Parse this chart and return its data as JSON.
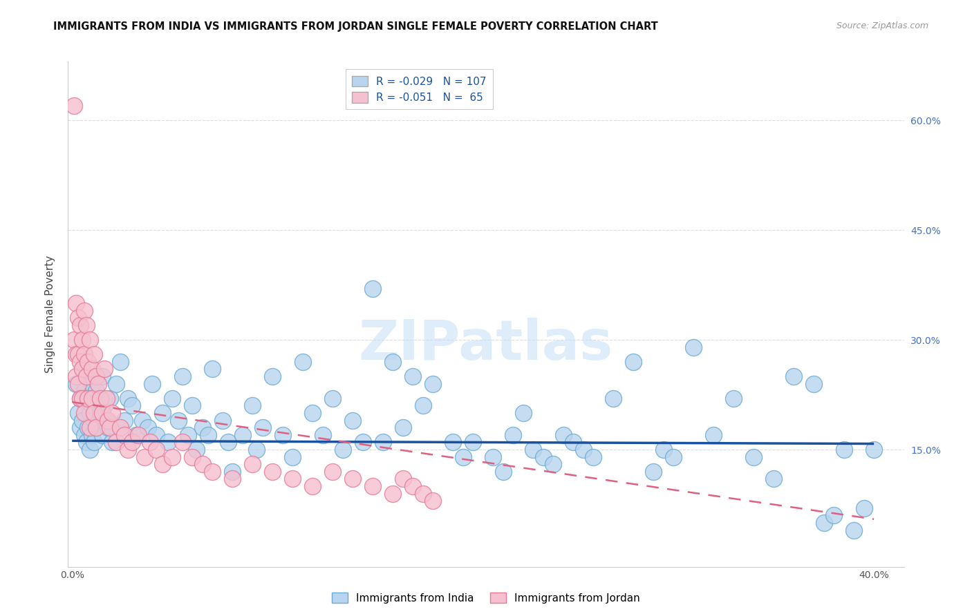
{
  "title": "IMMIGRANTS FROM INDIA VS IMMIGRANTS FROM JORDAN SINGLE FEMALE POVERTY CORRELATION CHART",
  "source": "Source: ZipAtlas.com",
  "xlabel_india": "Immigrants from India",
  "xlabel_jordan": "Immigrants from Jordan",
  "ylabel": "Single Female Poverty",
  "xlim": [
    -0.002,
    0.415
  ],
  "ylim": [
    -0.01,
    0.68
  ],
  "yticks": [
    0.15,
    0.3,
    0.45,
    0.6
  ],
  "ytick_labels": [
    "15.0%",
    "30.0%",
    "45.0%",
    "60.0%"
  ],
  "xticks": [
    0.0,
    0.1,
    0.2,
    0.3,
    0.4
  ],
  "xtick_labels": [
    "0.0%",
    "",
    "",
    "",
    "40.0%"
  ],
  "india_color": "#b8d4ee",
  "india_edge": "#6aaad4",
  "jordan_color": "#f5c0cf",
  "jordan_edge": "#e87898",
  "india_R": -0.029,
  "india_N": 107,
  "jordan_R": -0.051,
  "jordan_N": 65,
  "india_trend_color": "#1a52a0",
  "jordan_trend_color": "#e06080",
  "background_color": "#ffffff",
  "grid_color": "#dddddd",
  "watermark": "ZIPatlas",
  "india_trend_start_y": 0.162,
  "india_trend_end_y": 0.158,
  "jordan_trend_start_y": 0.215,
  "jordan_trend_end_y": 0.055,
  "india_scatter_x": [
    0.002,
    0.003,
    0.004,
    0.004,
    0.005,
    0.005,
    0.006,
    0.006,
    0.007,
    0.007,
    0.008,
    0.008,
    0.009,
    0.009,
    0.01,
    0.01,
    0.01,
    0.011,
    0.011,
    0.012,
    0.012,
    0.013,
    0.014,
    0.015,
    0.015,
    0.016,
    0.017,
    0.018,
    0.019,
    0.02,
    0.022,
    0.024,
    0.026,
    0.028,
    0.03,
    0.032,
    0.035,
    0.038,
    0.04,
    0.042,
    0.045,
    0.048,
    0.05,
    0.053,
    0.055,
    0.058,
    0.06,
    0.062,
    0.065,
    0.068,
    0.07,
    0.075,
    0.078,
    0.08,
    0.085,
    0.09,
    0.092,
    0.095,
    0.1,
    0.105,
    0.11,
    0.115,
    0.12,
    0.125,
    0.13,
    0.135,
    0.14,
    0.145,
    0.15,
    0.155,
    0.16,
    0.165,
    0.17,
    0.175,
    0.18,
    0.19,
    0.195,
    0.2,
    0.21,
    0.215,
    0.22,
    0.225,
    0.23,
    0.235,
    0.24,
    0.245,
    0.25,
    0.255,
    0.26,
    0.27,
    0.28,
    0.29,
    0.295,
    0.3,
    0.31,
    0.32,
    0.33,
    0.34,
    0.35,
    0.36,
    0.37,
    0.375,
    0.38,
    0.385,
    0.39,
    0.395,
    0.4
  ],
  "india_scatter_y": [
    0.24,
    0.2,
    0.22,
    0.18,
    0.26,
    0.19,
    0.23,
    0.17,
    0.25,
    0.16,
    0.22,
    0.18,
    0.2,
    0.15,
    0.24,
    0.21,
    0.17,
    0.19,
    0.16,
    0.23,
    0.18,
    0.22,
    0.2,
    0.25,
    0.17,
    0.21,
    0.19,
    0.18,
    0.22,
    0.16,
    0.24,
    0.27,
    0.19,
    0.22,
    0.21,
    0.17,
    0.19,
    0.18,
    0.24,
    0.17,
    0.2,
    0.16,
    0.22,
    0.19,
    0.25,
    0.17,
    0.21,
    0.15,
    0.18,
    0.17,
    0.26,
    0.19,
    0.16,
    0.12,
    0.17,
    0.21,
    0.15,
    0.18,
    0.25,
    0.17,
    0.14,
    0.27,
    0.2,
    0.17,
    0.22,
    0.15,
    0.19,
    0.16,
    0.37,
    0.16,
    0.27,
    0.18,
    0.25,
    0.21,
    0.24,
    0.16,
    0.14,
    0.16,
    0.14,
    0.12,
    0.17,
    0.2,
    0.15,
    0.14,
    0.13,
    0.17,
    0.16,
    0.15,
    0.14,
    0.22,
    0.27,
    0.12,
    0.15,
    0.14,
    0.29,
    0.17,
    0.22,
    0.14,
    0.11,
    0.25,
    0.24,
    0.05,
    0.06,
    0.15,
    0.04,
    0.07,
    0.15
  ],
  "jordan_scatter_x": [
    0.001,
    0.001,
    0.002,
    0.002,
    0.002,
    0.003,
    0.003,
    0.003,
    0.004,
    0.004,
    0.004,
    0.005,
    0.005,
    0.005,
    0.006,
    0.006,
    0.006,
    0.007,
    0.007,
    0.008,
    0.008,
    0.009,
    0.009,
    0.01,
    0.01,
    0.011,
    0.011,
    0.012,
    0.012,
    0.013,
    0.014,
    0.015,
    0.016,
    0.017,
    0.018,
    0.019,
    0.02,
    0.022,
    0.024,
    0.026,
    0.028,
    0.03,
    0.033,
    0.036,
    0.039,
    0.042,
    0.045,
    0.05,
    0.055,
    0.06,
    0.065,
    0.07,
    0.08,
    0.09,
    0.1,
    0.11,
    0.12,
    0.13,
    0.14,
    0.15,
    0.16,
    0.165,
    0.17,
    0.175,
    0.18
  ],
  "jordan_scatter_y": [
    0.62,
    0.3,
    0.35,
    0.28,
    0.25,
    0.33,
    0.28,
    0.24,
    0.32,
    0.27,
    0.22,
    0.3,
    0.26,
    0.22,
    0.34,
    0.28,
    0.2,
    0.32,
    0.25,
    0.27,
    0.22,
    0.3,
    0.18,
    0.26,
    0.22,
    0.28,
    0.2,
    0.25,
    0.18,
    0.24,
    0.22,
    0.2,
    0.26,
    0.22,
    0.19,
    0.18,
    0.2,
    0.16,
    0.18,
    0.17,
    0.15,
    0.16,
    0.17,
    0.14,
    0.16,
    0.15,
    0.13,
    0.14,
    0.16,
    0.14,
    0.13,
    0.12,
    0.11,
    0.13,
    0.12,
    0.11,
    0.1,
    0.12,
    0.11,
    0.1,
    0.09,
    0.11,
    0.1,
    0.09,
    0.08
  ]
}
